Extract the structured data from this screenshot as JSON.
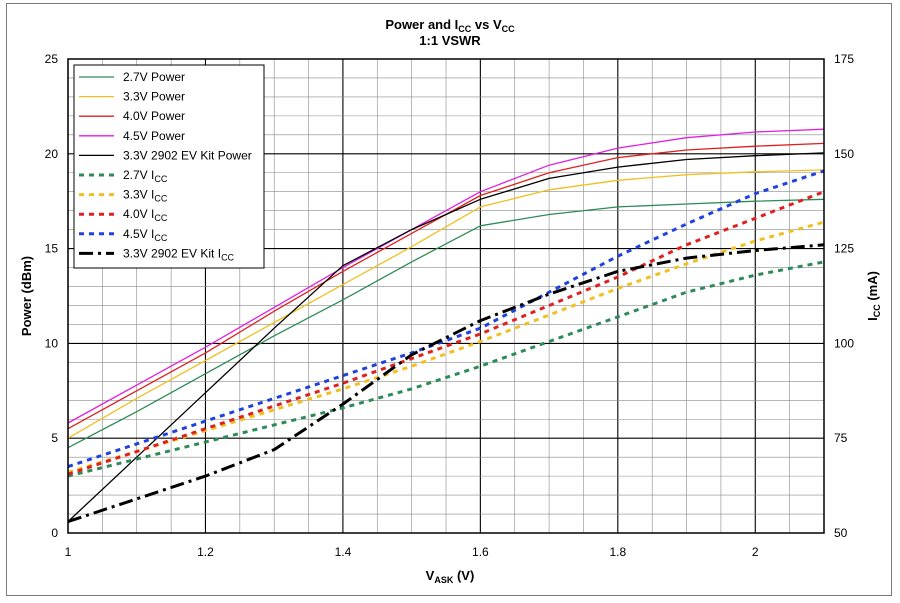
{
  "chart_data": {
    "type": "line",
    "title": {
      "main": "Power and I",
      "sub1": "CC",
      "mid": " vs V",
      "sub2": "CC",
      "line2": "1:1 VSWR"
    },
    "xlabel": {
      "main": "V",
      "sub": "ASK",
      "unit": " (V)"
    },
    "ylabel_left": "Power (dBm)",
    "ylabel_right": {
      "main": "I",
      "sub": "CC",
      "unit": " (mA)"
    },
    "xlim": [
      1,
      2.1
    ],
    "ylim_left": [
      0,
      25
    ],
    "ylim_right": [
      50,
      175
    ],
    "x_ticks": [
      "1",
      "1.2",
      "1.4",
      "1.6",
      "1.8",
      "2"
    ],
    "y_ticks_left": [
      "0",
      "5",
      "10",
      "15",
      "20",
      "25"
    ],
    "y_ticks_right": [
      "50",
      "75",
      "100",
      "125",
      "150",
      "175"
    ],
    "grid": true,
    "legend_position": "top-left",
    "series": [
      {
        "name": "2.7V Power",
        "axis": "left",
        "color": "#2e8b57",
        "style": "solid",
        "x": [
          1,
          1.1,
          1.2,
          1.3,
          1.4,
          1.5,
          1.6,
          1.7,
          1.8,
          1.9,
          2.0,
          2.1
        ],
        "y": [
          4.5,
          6.4,
          8.4,
          10.4,
          12.3,
          14.3,
          16.2,
          16.8,
          17.2,
          17.35,
          17.5,
          17.6
        ]
      },
      {
        "name": "3.3V Power",
        "axis": "left",
        "color": "#f0c020",
        "style": "solid",
        "x": [
          1,
          1.1,
          1.2,
          1.3,
          1.4,
          1.5,
          1.6,
          1.7,
          1.8,
          1.9,
          2.0,
          2.1
        ],
        "y": [
          5.0,
          7.1,
          9.1,
          11.1,
          13.1,
          15.1,
          17.2,
          18.1,
          18.6,
          18.9,
          19.05,
          19.15
        ]
      },
      {
        "name": "4.0V Power",
        "axis": "left",
        "color": "#e02020",
        "style": "solid",
        "x": [
          1,
          1.1,
          1.2,
          1.3,
          1.4,
          1.5,
          1.6,
          1.7,
          1.8,
          1.9,
          2.0,
          2.1
        ],
        "y": [
          5.5,
          7.5,
          9.5,
          11.7,
          13.8,
          15.8,
          17.8,
          19.0,
          19.8,
          20.2,
          20.4,
          20.55
        ]
      },
      {
        "name": "4.5V Power",
        "axis": "left",
        "color": "#e020e0",
        "style": "solid",
        "x": [
          1,
          1.1,
          1.2,
          1.3,
          1.4,
          1.5,
          1.6,
          1.7,
          1.8,
          1.9,
          2.0,
          2.1
        ],
        "y": [
          5.8,
          7.8,
          9.8,
          11.9,
          14.0,
          16.0,
          18.0,
          19.4,
          20.3,
          20.85,
          21.15,
          21.3
        ]
      },
      {
        "name": "3.3V 2902 EV Kit Power",
        "axis": "left",
        "color": "#000000",
        "style": "solid",
        "x": [
          1,
          1.1,
          1.2,
          1.3,
          1.4,
          1.5,
          1.6,
          1.7,
          1.8,
          1.9,
          2.0,
          2.1
        ],
        "y": [
          0.6,
          4.0,
          7.4,
          10.8,
          14.1,
          16.0,
          17.6,
          18.7,
          19.3,
          19.7,
          19.9,
          20.05
        ]
      },
      {
        "name": "2.7V ICC",
        "axis": "right",
        "color": "#2e8b57",
        "style": "dash",
        "x": [
          1,
          1.1,
          1.2,
          1.3,
          1.4,
          1.5,
          1.6,
          1.7,
          1.8,
          1.9,
          2.0,
          2.1
        ],
        "y": [
          65,
          69.5,
          74,
          78.5,
          83,
          88,
          94,
          100.5,
          107,
          113.5,
          118,
          121.5
        ]
      },
      {
        "name": "3.3V ICC",
        "axis": "right",
        "color": "#f0c020",
        "style": "dash",
        "x": [
          1,
          1.1,
          1.2,
          1.3,
          1.4,
          1.5,
          1.6,
          1.7,
          1.8,
          1.9,
          2.0,
          2.1
        ],
        "y": [
          66,
          71.5,
          77,
          82.5,
          88,
          94,
          100.5,
          107.5,
          114.5,
          121,
          127,
          132
        ]
      },
      {
        "name": "4.0V ICC",
        "axis": "right",
        "color": "#e02020",
        "style": "dash",
        "x": [
          1,
          1.1,
          1.2,
          1.3,
          1.4,
          1.5,
          1.6,
          1.7,
          1.8,
          1.9,
          2.0,
          2.1
        ],
        "y": [
          65.5,
          71.5,
          77.5,
          83.5,
          89.5,
          96,
          102.5,
          110,
          117.5,
          126,
          133,
          140
        ]
      },
      {
        "name": "4.5V ICC",
        "axis": "right",
        "color": "#2040e0",
        "style": "dash",
        "x": [
          1,
          1.1,
          1.2,
          1.3,
          1.4,
          1.5,
          1.6,
          1.7,
          1.8,
          1.9,
          2.0,
          2.1
        ],
        "y": [
          67.5,
          73.5,
          79.5,
          85.5,
          91.5,
          97.5,
          104,
          113.5,
          123,
          131.5,
          139.5,
          145.5
        ]
      },
      {
        "name": "3.3V 2902 EV Kit ICC",
        "axis": "right",
        "color": "#000000",
        "style": "dashdot",
        "x": [
          1,
          1.1,
          1.2,
          1.3,
          1.4,
          1.5,
          1.6,
          1.7,
          1.8,
          1.9,
          2.0,
          2.1
        ],
        "y": [
          53,
          59,
          65,
          72,
          84,
          97,
          106,
          113,
          119,
          122.5,
          124.5,
          126
        ]
      }
    ]
  }
}
